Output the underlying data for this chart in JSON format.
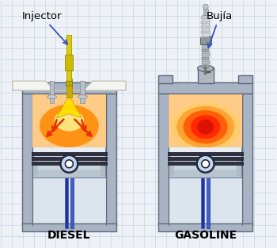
{
  "background_color": "#eef2f7",
  "grid_color": "#c5d5e5",
  "title_diesel": "DIESEL",
  "title_gasoline": "GASOLINE",
  "label_injector": "Injector",
  "label_bujia": "Bujía",
  "title_fontsize": 10,
  "label_fontsize": 9.5,
  "fig_width": 3.5,
  "fig_height": 3.13,
  "dpi": 100,
  "wall_color": "#a8b4c4",
  "wall_edge": "#606878",
  "bore_color": "#dce4ee",
  "piston_hi": "#e8eef4",
  "piston_mid": "#c8d4de",
  "piston_edge": "#7080a0",
  "fire_orange": "#ff8800",
  "fire_red": "#e83000",
  "fire_yellow": "#ffdd44",
  "fire_pale": "#ffcc88",
  "inj_yellow": "#ffe000",
  "rod_blue1": "#2030a0",
  "rod_blue2": "#4060c0",
  "ring_color": "#303040",
  "pin_dark": "#202844",
  "pin_light": "#c8d8e8",
  "spark_metal": "#909898",
  "spark_light": "#c8d0d0",
  "spark_dark": "#606868"
}
